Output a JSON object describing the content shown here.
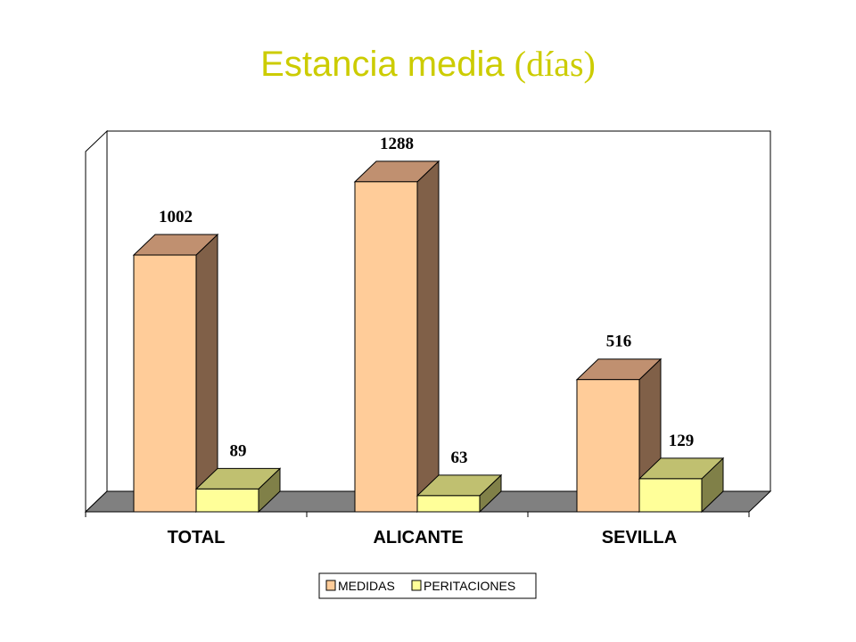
{
  "title_main": "Estancia media",
  "title_unit": "(días)",
  "chart_data": {
    "type": "bar",
    "categories": [
      "TOTAL",
      "ALICANTE",
      "SEVILLA"
    ],
    "series": [
      {
        "name": "MEDIDAS",
        "values": [
          1002,
          1288,
          516
        ]
      },
      {
        "name": "PERITACIONES",
        "values": [
          89,
          63,
          129
        ]
      }
    ],
    "ylim": [
      0,
      1400
    ],
    "grid": false,
    "legend": "bottom",
    "style": "3d-column"
  },
  "colors": {
    "title": "#cccc00",
    "MEDIDAS": {
      "front": "#ffcc99",
      "top": "#c09070",
      "side": "#806048"
    },
    "PERITACIONES": {
      "front": "#ffff99",
      "top": "#c0c070",
      "side": "#808048"
    },
    "floor": "#808080"
  }
}
